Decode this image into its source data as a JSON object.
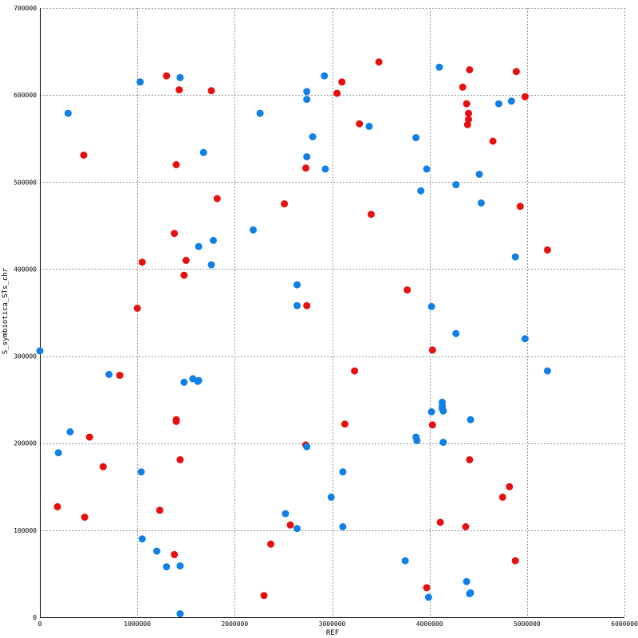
{
  "chart_data": {
    "type": "scatter",
    "title": "",
    "xlabel": "REF",
    "ylabel": "S_symbiotica_STs_chr",
    "xlim": [
      0,
      6000000
    ],
    "ylim": [
      0,
      700000
    ],
    "grid": true,
    "x_ticks": [
      0,
      1000000,
      2000000,
      3000000,
      4000000,
      5000000,
      6000000
    ],
    "y_ticks": [
      0,
      100000,
      200000,
      300000,
      400000,
      500000,
      600000,
      700000
    ],
    "x_tick_labels": [
      "0",
      "1000000",
      "2000000",
      "3000000",
      "4000000",
      "5000000",
      "6000000"
    ],
    "y_tick_labels": [
      "0",
      "100000",
      "200000",
      "300000",
      "400000",
      "500000",
      "600000",
      "700000"
    ],
    "series": [
      {
        "color": "#e61010",
        "points": [
          [
            1300000,
            622000
          ],
          [
            1430000,
            606000
          ],
          [
            1760000,
            605000
          ],
          [
            3480000,
            638000
          ],
          [
            3100000,
            615000
          ],
          [
            3050000,
            602000
          ],
          [
            3280000,
            567000
          ],
          [
            4340000,
            609000
          ],
          [
            4410000,
            629000
          ],
          [
            4890000,
            627000
          ],
          [
            4980000,
            598000
          ],
          [
            4380000,
            590000
          ],
          [
            4400000,
            579000
          ],
          [
            4400000,
            572000
          ],
          [
            4390000,
            566000
          ],
          [
            4650000,
            547000
          ],
          [
            450000,
            531000
          ],
          [
            1400000,
            520000
          ],
          [
            2730000,
            516000
          ],
          [
            1820000,
            481000
          ],
          [
            2510000,
            475000
          ],
          [
            3400000,
            463000
          ],
          [
            4930000,
            472000
          ],
          [
            1380000,
            441000
          ],
          [
            1500000,
            410000
          ],
          [
            1050000,
            408000
          ],
          [
            5210000,
            422000
          ],
          [
            1480000,
            393000
          ],
          [
            3770000,
            376000
          ],
          [
            1000000,
            355000
          ],
          [
            2740000,
            358000
          ],
          [
            4030000,
            307000
          ],
          [
            3230000,
            283000
          ],
          [
            820000,
            278000
          ],
          [
            1400000,
            227000
          ],
          [
            1400000,
            225000
          ],
          [
            3130000,
            222000
          ],
          [
            4030000,
            221000
          ],
          [
            510000,
            207000
          ],
          [
            2730000,
            198000
          ],
          [
            1440000,
            181000
          ],
          [
            4410000,
            181000
          ],
          [
            650000,
            173000
          ],
          [
            4820000,
            150000
          ],
          [
            4750000,
            138000
          ],
          [
            180000,
            127000
          ],
          [
            1230000,
            123000
          ],
          [
            460000,
            115000
          ],
          [
            4110000,
            109000
          ],
          [
            2570000,
            106000
          ],
          [
            4370000,
            104000
          ],
          [
            2370000,
            84000
          ],
          [
            1380000,
            72000
          ],
          [
            4880000,
            65000
          ],
          [
            3970000,
            34000
          ],
          [
            2300000,
            25000
          ]
        ]
      },
      {
        "color": "#1080e6",
        "points": [
          [
            4100000,
            632000
          ],
          [
            2920000,
            622000
          ],
          [
            1440000,
            620000
          ],
          [
            1030000,
            615000
          ],
          [
            2740000,
            604000
          ],
          [
            2740000,
            595000
          ],
          [
            4840000,
            593000
          ],
          [
            4710000,
            590000
          ],
          [
            290000,
            579000
          ],
          [
            2260000,
            579000
          ],
          [
            3380000,
            564000
          ],
          [
            2800000,
            552000
          ],
          [
            3860000,
            551000
          ],
          [
            1680000,
            534000
          ],
          [
            2740000,
            529000
          ],
          [
            2930000,
            515000
          ],
          [
            3970000,
            515000
          ],
          [
            4510000,
            509000
          ],
          [
            4270000,
            497000
          ],
          [
            3910000,
            490000
          ],
          [
            4530000,
            476000
          ],
          [
            2190000,
            445000
          ],
          [
            1780000,
            433000
          ],
          [
            1630000,
            426000
          ],
          [
            4880000,
            414000
          ],
          [
            1760000,
            405000
          ],
          [
            2640000,
            382000
          ],
          [
            2640000,
            358000
          ],
          [
            4020000,
            357000
          ],
          [
            4270000,
            326000
          ],
          [
            4980000,
            320000
          ],
          [
            0,
            306000
          ],
          [
            710000,
            279000
          ],
          [
            5210000,
            283000
          ],
          [
            1570000,
            274000
          ],
          [
            1630000,
            272000
          ],
          [
            1620000,
            271000
          ],
          [
            1480000,
            270000
          ],
          [
            4130000,
            247000
          ],
          [
            4130000,
            243000
          ],
          [
            4130000,
            240000
          ],
          [
            4140000,
            237000
          ],
          [
            4020000,
            236000
          ],
          [
            4420000,
            227000
          ],
          [
            310000,
            213000
          ],
          [
            3860000,
            207000
          ],
          [
            3870000,
            203000
          ],
          [
            4140000,
            201000
          ],
          [
            2740000,
            196000
          ],
          [
            190000,
            189000
          ],
          [
            1040000,
            167000
          ],
          [
            3110000,
            167000
          ],
          [
            2990000,
            138000
          ],
          [
            2520000,
            119000
          ],
          [
            3110000,
            104000
          ],
          [
            2640000,
            102000
          ],
          [
            1050000,
            90000
          ],
          [
            1200000,
            76000
          ],
          [
            3750000,
            65000
          ],
          [
            1300000,
            58000
          ],
          [
            1440000,
            59000
          ],
          [
            4380000,
            41000
          ],
          [
            4420000,
            28000
          ],
          [
            4410000,
            27000
          ],
          [
            3990000,
            23000
          ],
          [
            1440000,
            4000
          ]
        ]
      }
    ]
  }
}
